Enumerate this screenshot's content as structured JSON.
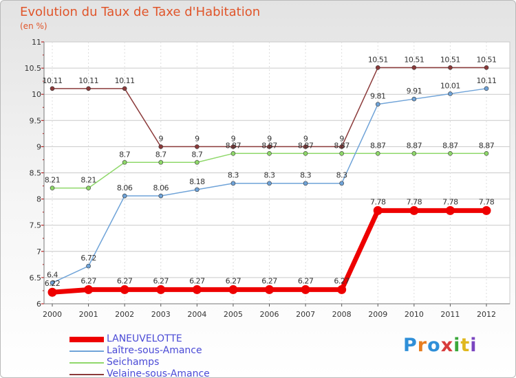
{
  "title": "Evolution du Taux de Taxe d'Habitation",
  "unit": "(en %)",
  "brand": {
    "text": "Proxiti",
    "colors": [
      "#2f8fd8",
      "#e77e21",
      "#2f8fd8",
      "#d83c3c",
      "#3aa83a",
      "#e0b81e",
      "#7a45c0"
    ]
  },
  "chart_data": {
    "type": "line",
    "x": [
      "2000",
      "2001",
      "2002",
      "2003",
      "2004",
      "2005",
      "2006",
      "2007",
      "2008",
      "2009",
      "2010",
      "2011",
      "2012"
    ],
    "ylim": [
      6,
      11
    ],
    "yticks": [
      "6",
      "6.5",
      "7",
      "7.5",
      "8",
      "8.5",
      "9",
      "9.5",
      "10",
      "10.5",
      "11"
    ],
    "legend_position": "bottom-left",
    "series": [
      {
        "name": "LANEUVELOTTE",
        "color": "#ee0000",
        "values": [
          6.22,
          6.27,
          6.27,
          6.27,
          6.27,
          6.27,
          6.27,
          6.27,
          6.27,
          7.78,
          7.78,
          7.78,
          7.78
        ],
        "labels": [
          "6.22",
          "6.27",
          "6.27",
          "6.27",
          "6.27",
          "6.27",
          "6.27",
          "6.27",
          "6.27",
          "7.78",
          "7.78",
          "7.78",
          "7.78"
        ]
      },
      {
        "name": "Laître-sous-Amance",
        "color": "#6fa3d8",
        "values": [
          6.4,
          6.72,
          8.06,
          8.06,
          8.18,
          8.3,
          8.3,
          8.3,
          8.3,
          9.81,
          9.91,
          10.01,
          10.11
        ],
        "labels": [
          "6.4",
          "6.72",
          "8.06",
          "8.06",
          "8.18",
          "8.3",
          "8.3",
          "8.3",
          "8.3",
          "9.81",
          "9.91",
          "10.01",
          "10.11"
        ]
      },
      {
        "name": "Seichamps",
        "color": "#8fd86a",
        "values": [
          8.21,
          8.21,
          8.7,
          8.7,
          8.7,
          8.87,
          8.87,
          8.87,
          8.87,
          8.87,
          8.87,
          8.87,
          8.87
        ],
        "labels": [
          "8.21",
          "8.21",
          "8.7",
          "8.7",
          "8.7",
          "8.87",
          "8.87",
          "8.87",
          "8.87",
          "8.87",
          "8.87",
          "8.87",
          "8.87"
        ]
      },
      {
        "name": "Velaine-sous-Amance",
        "color": "#8b3a3a",
        "values": [
          10.11,
          10.11,
          10.11,
          9,
          9,
          9,
          9,
          9,
          9,
          10.51,
          10.51,
          10.51,
          10.51
        ],
        "labels": [
          "10.11",
          "10.11",
          "10.11",
          "9",
          "9",
          "9",
          "9",
          "9",
          "9",
          "10.51",
          "10.51",
          "10.51",
          "10.51"
        ]
      }
    ]
  }
}
